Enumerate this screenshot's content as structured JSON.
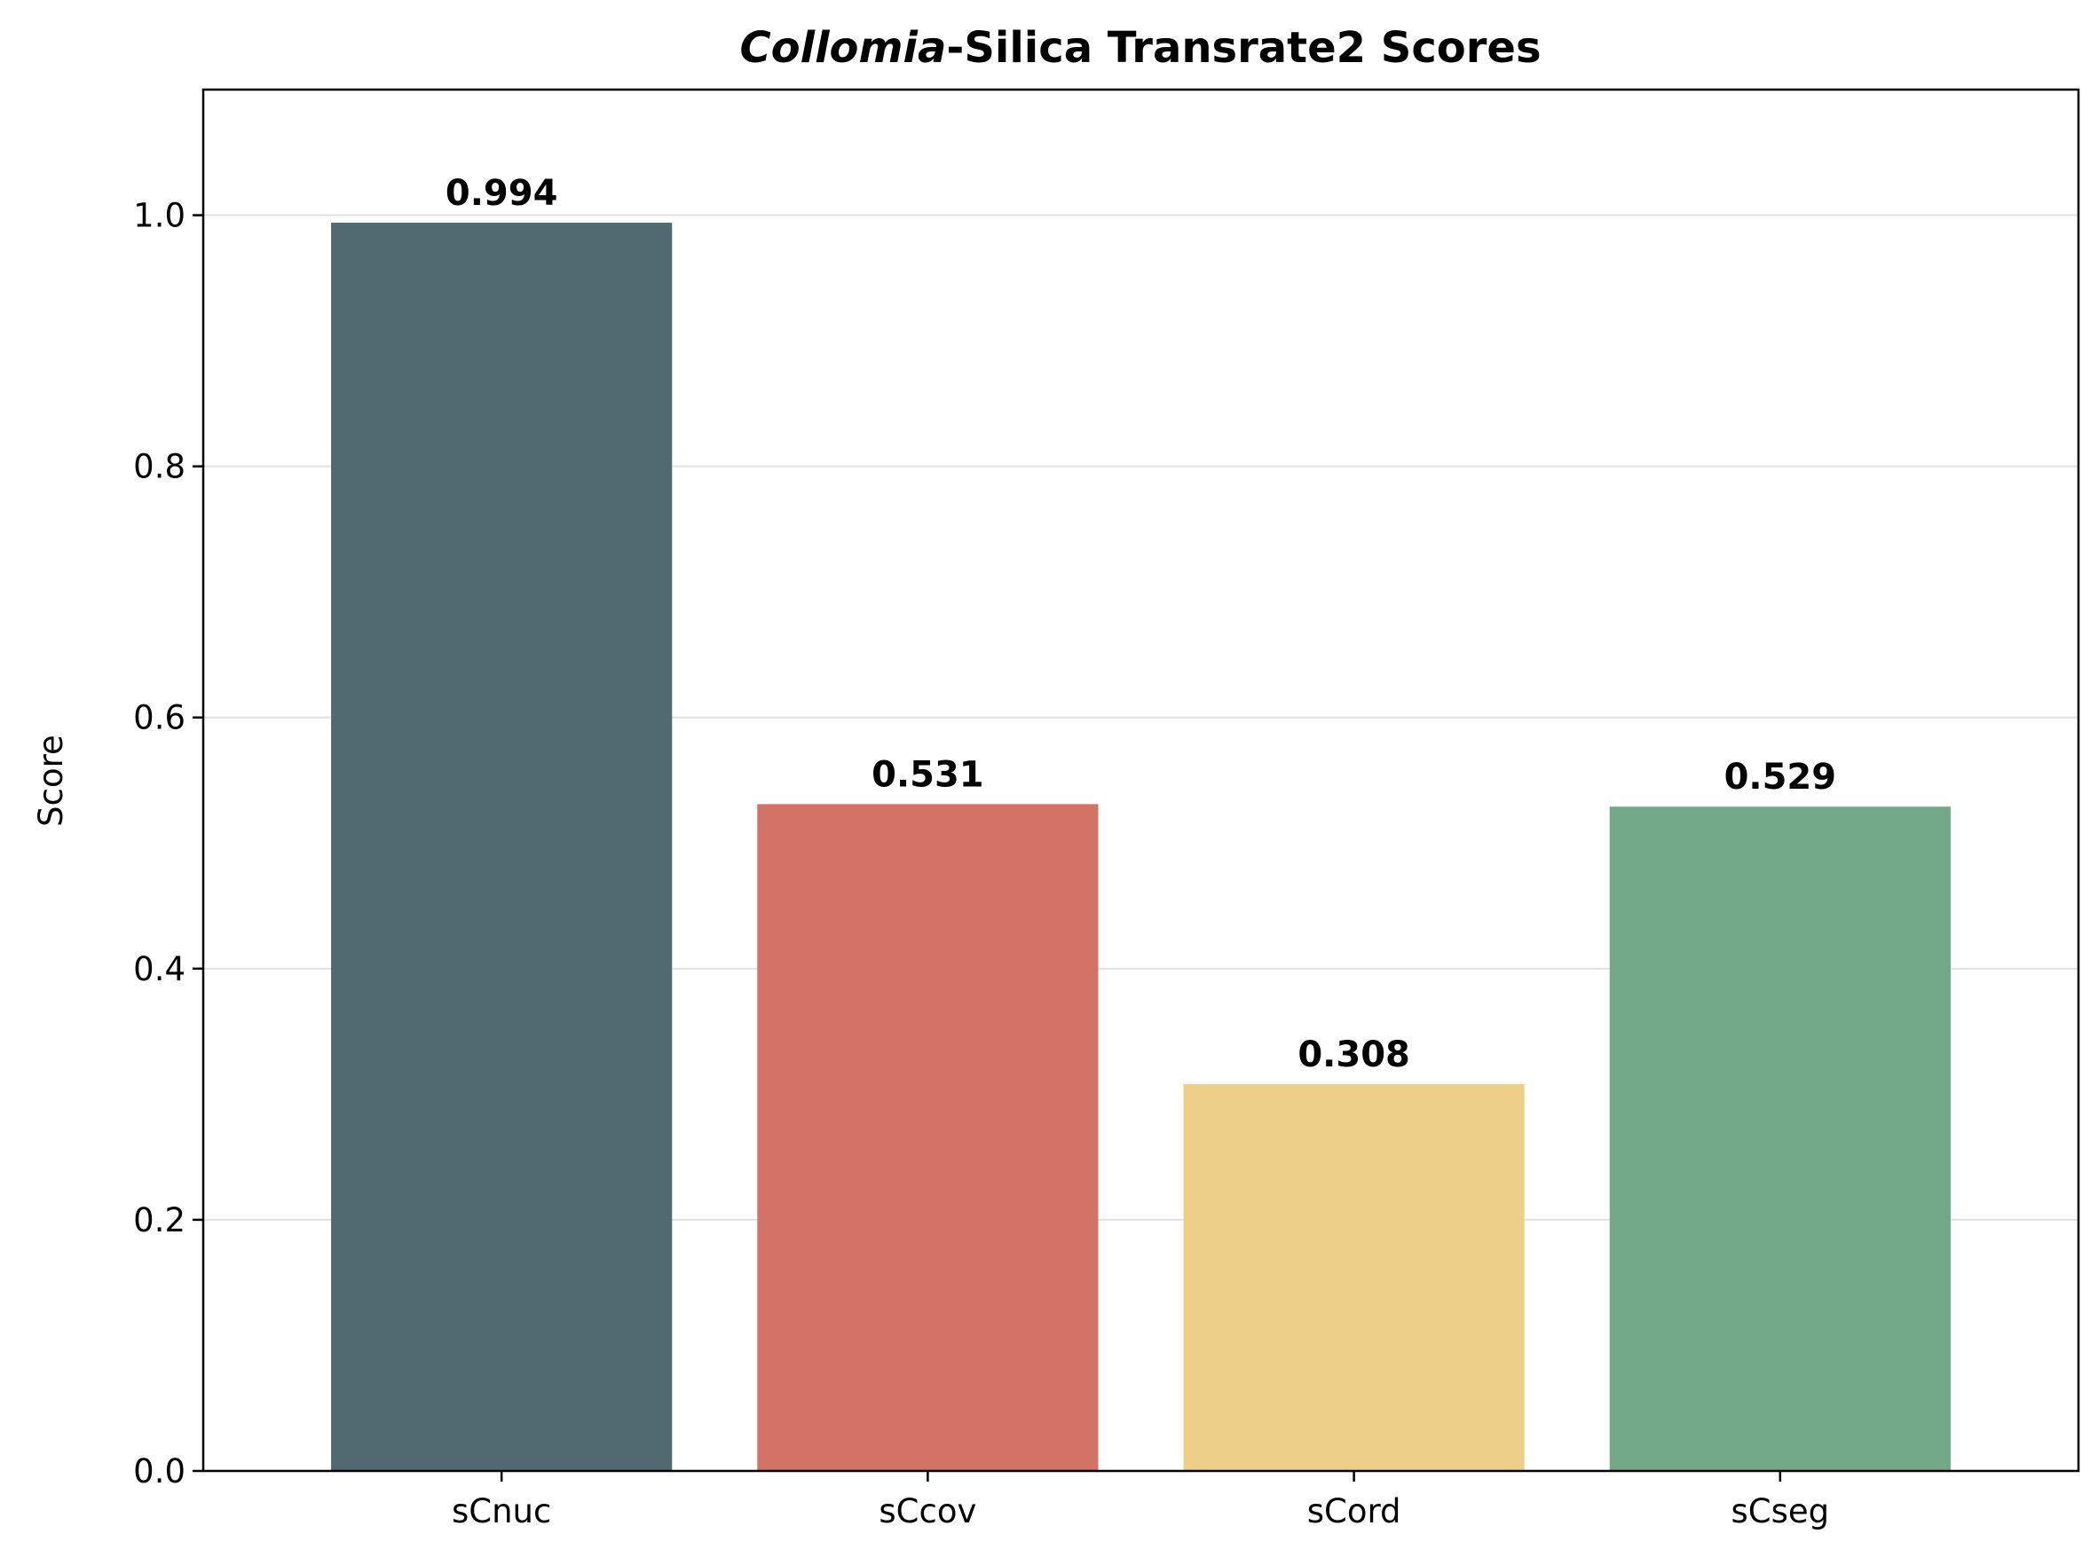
{
  "chart_data": {
    "type": "bar",
    "title": {
      "italic_part": "Collomia",
      "rest": "-Silica Transrate2 Scores"
    },
    "xlabel": "",
    "ylabel": "Score",
    "categories": [
      "sCnuc",
      "sCcov",
      "sCord",
      "sCseg"
    ],
    "values": [
      0.994,
      0.531,
      0.308,
      0.529
    ],
    "value_labels": [
      "0.994",
      "0.531",
      "0.308",
      "0.529"
    ],
    "colors": [
      "#516a72",
      "#d37266",
      "#edcf88",
      "#72a885"
    ],
    "ylim": [
      0,
      1.1
    ],
    "yticks": [
      0.0,
      0.2,
      0.4,
      0.6,
      0.8,
      1.0
    ],
    "ytick_labels": [
      "0.0",
      "0.2",
      "0.4",
      "0.6",
      "0.8",
      "1.0"
    ],
    "grid": "horizontal",
    "legend": "none"
  }
}
